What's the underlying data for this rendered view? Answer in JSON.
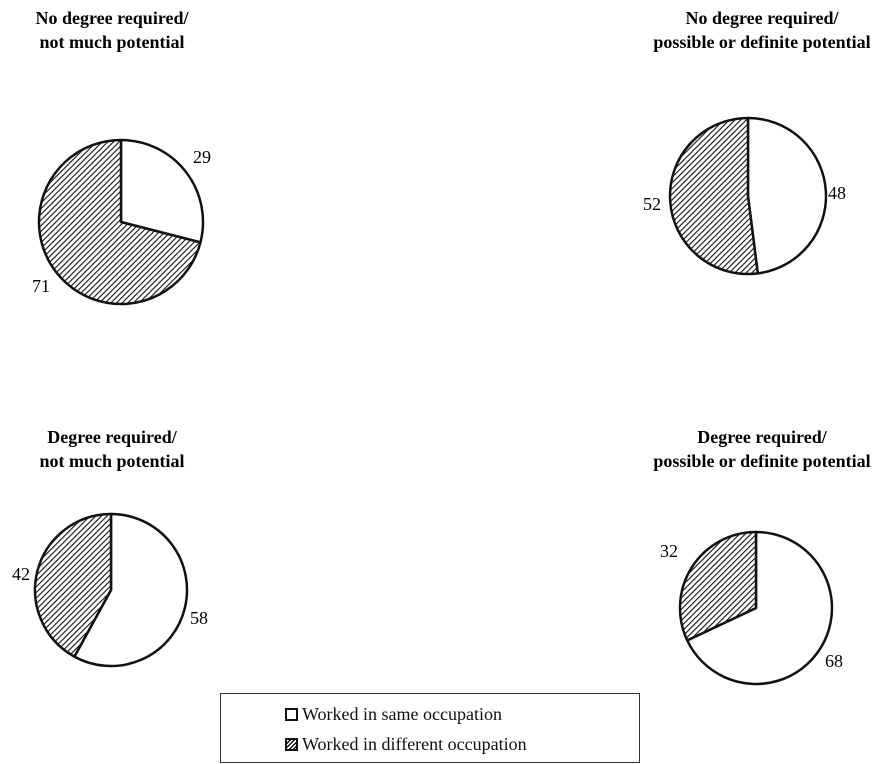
{
  "chart_data": [
    {
      "type": "pie",
      "title_lines": [
        "No degree required/",
        "not much potential"
      ],
      "slices": [
        {
          "label": "Worked in same occupation",
          "value": 29,
          "display": "29"
        },
        {
          "label": "Worked in different occupation",
          "value": 71,
          "display": "71"
        }
      ]
    },
    {
      "type": "pie",
      "title_lines": [
        "No degree required/",
        "possible or definite potential"
      ],
      "slices": [
        {
          "label": "Worked in same occupation",
          "value": 48,
          "display": "48"
        },
        {
          "label": "Worked in different occupation",
          "value": 52,
          "display": "52"
        }
      ]
    },
    {
      "type": "pie",
      "title_lines": [
        "Degree required/",
        "not much potential"
      ],
      "slices": [
        {
          "label": "Worked in same occupation",
          "value": 58,
          "display": "58"
        },
        {
          "label": "Worked in different occupation",
          "value": 42,
          "display": "42"
        }
      ]
    },
    {
      "type": "pie",
      "title_lines": [
        "Degree required/",
        "possible or definite potential"
      ],
      "slices": [
        {
          "label": "Worked in same occupation",
          "value": 68,
          "display": "68"
        },
        {
          "label": "Worked in different occupation",
          "value": 32,
          "display": "32"
        }
      ]
    }
  ],
  "legend": {
    "items": [
      {
        "label": "Worked in same occupation",
        "fill": "white"
      },
      {
        "label": "Worked in different occupation",
        "fill": "hatched"
      }
    ]
  },
  "colors": {
    "outline": "#111111",
    "same_fill": "#ffffff",
    "different_fill": "#111111"
  }
}
